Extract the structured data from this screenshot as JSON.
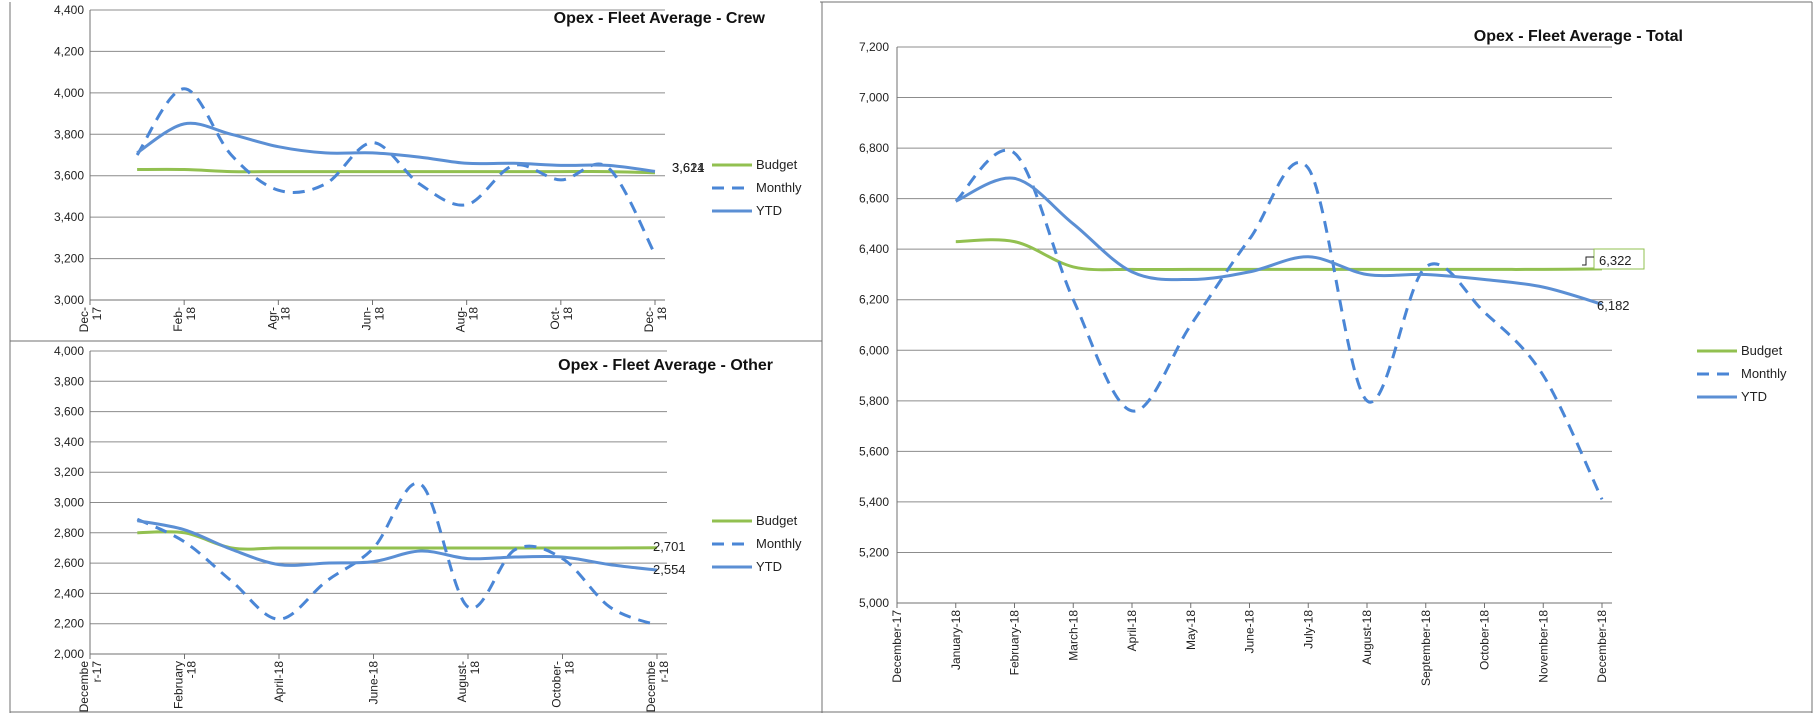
{
  "colors": {
    "budget": "#92c050",
    "monthly": "#4a86d6",
    "ytd": "#5b8fd4",
    "grid": "#8c8c8c",
    "frame": "#707070"
  },
  "chart_data": [
    {
      "id": "crew",
      "type": "line",
      "title": "Opex - Fleet Average - Crew",
      "x": [
        0,
        1,
        2,
        3,
        4,
        5,
        6,
        7,
        8,
        9,
        10,
        11,
        12
      ],
      "tick_labels": [
        "Dec-\n17",
        "Feb-\n18",
        "Agr-\n18",
        "Jun-\n18",
        "Aug-\n18",
        "Oct-\n18",
        "Dec-\n18"
      ],
      "tick_positions": [
        0,
        2,
        4,
        6,
        8,
        10,
        12
      ],
      "ylim": [
        3000,
        4400
      ],
      "yticks": [
        3000,
        3200,
        3400,
        3600,
        3800,
        4000,
        4200,
        4400
      ],
      "ytick_labels": [
        "3,000",
        "3,200",
        "3,400",
        "3,600",
        "3,800",
        "4,000",
        "4,200",
        "4,400"
      ],
      "series": [
        {
          "name": "Budget",
          "style": "solid-green",
          "x": [
            1,
            2,
            3,
            4,
            5,
            6,
            7,
            8,
            9,
            10,
            11,
            12
          ],
          "values": [
            3630,
            3630,
            3620,
            3620,
            3620,
            3620,
            3620,
            3620,
            3620,
            3620,
            3620,
            3614
          ]
        },
        {
          "name": "Monthly",
          "style": "dashed-blue",
          "x": [
            1,
            2,
            3,
            4,
            5,
            6,
            7,
            8,
            9,
            10,
            11,
            12
          ],
          "values": [
            3700,
            4020,
            3700,
            3530,
            3560,
            3760,
            3560,
            3460,
            3650,
            3580,
            3640,
            3220
          ]
        },
        {
          "name": "YTD",
          "style": "solid-blue",
          "x": [
            1,
            2,
            3,
            4,
            5,
            6,
            7,
            8,
            9,
            10,
            11,
            12
          ],
          "values": [
            3710,
            3850,
            3800,
            3740,
            3710,
            3710,
            3690,
            3660,
            3660,
            3650,
            3650,
            3621
          ]
        }
      ],
      "end_labels": [
        "3,614",
        "3,621"
      ],
      "legend": [
        "Budget",
        "Monthly",
        "YTD"
      ]
    },
    {
      "id": "other",
      "type": "line",
      "title": "Opex - Fleet Average - Other",
      "x": [
        0,
        1,
        2,
        3,
        4,
        5,
        6,
        7,
        8,
        9,
        10,
        11,
        12
      ],
      "tick_labels": [
        "Decembe\nr-17",
        "February\n-18",
        "April-18",
        "June-18",
        "August-\n18",
        "October-\n18",
        "Decembe\nr-18"
      ],
      "tick_positions": [
        0,
        2,
        4,
        6,
        8,
        10,
        12
      ],
      "ylim": [
        2000,
        4000
      ],
      "yticks": [
        2000,
        2200,
        2400,
        2600,
        2800,
        3000,
        3200,
        3400,
        3600,
        3800,
        4000
      ],
      "ytick_labels": [
        "2,000",
        "2,200",
        "2,400",
        "2,600",
        "2,800",
        "3,000",
        "3,200",
        "3,400",
        "3,600",
        "3,800",
        "4,000"
      ],
      "series": [
        {
          "name": "Budget",
          "style": "solid-green",
          "x": [
            1,
            2,
            3,
            4,
            5,
            6,
            7,
            8,
            9,
            10,
            11,
            12
          ],
          "values": [
            2800,
            2800,
            2700,
            2700,
            2700,
            2700,
            2700,
            2700,
            2700,
            2700,
            2700,
            2701
          ]
        },
        {
          "name": "Monthly",
          "style": "dashed-blue",
          "x": [
            1,
            2,
            3,
            4,
            5,
            6,
            7,
            8,
            9,
            10,
            11,
            12
          ],
          "values": [
            2890,
            2740,
            2480,
            2230,
            2480,
            2700,
            3120,
            2310,
            2690,
            2630,
            2310,
            2190
          ]
        },
        {
          "name": "YTD",
          "style": "solid-blue",
          "x": [
            1,
            2,
            3,
            4,
            5,
            6,
            7,
            8,
            9,
            10,
            11,
            12
          ],
          "values": [
            2880,
            2820,
            2690,
            2590,
            2600,
            2610,
            2680,
            2630,
            2640,
            2640,
            2590,
            2554
          ]
        }
      ],
      "end_labels": [
        "2,701",
        "2,554"
      ],
      "legend": [
        "Budget",
        "Monthly",
        "YTD"
      ]
    },
    {
      "id": "total",
      "type": "line",
      "title": "Opex - Fleet Average - Total",
      "x": [
        0,
        1,
        2,
        3,
        4,
        5,
        6,
        7,
        8,
        9,
        10,
        11,
        12
      ],
      "tick_labels": [
        "December-17",
        "January-18",
        "February-18",
        "March-18",
        "April-18",
        "May-18",
        "June-18",
        "July-18",
        "August-18",
        "September-18",
        "October-18",
        "November-18",
        "December-18"
      ],
      "tick_positions": [
        0,
        1,
        2,
        3,
        4,
        5,
        6,
        7,
        8,
        9,
        10,
        11,
        12
      ],
      "ylim": [
        5000,
        7200
      ],
      "yticks": [
        5000,
        5200,
        5400,
        5600,
        5800,
        6000,
        6200,
        6400,
        6600,
        6800,
        7000,
        7200
      ],
      "ytick_labels": [
        "5,000",
        "5,200",
        "5,400",
        "5,600",
        "5,800",
        "6,000",
        "6,200",
        "6,400",
        "6,600",
        "6,800",
        "7,000",
        "7,200"
      ],
      "series": [
        {
          "name": "Budget",
          "style": "solid-green",
          "x": [
            1,
            2,
            3,
            4,
            5,
            6,
            7,
            8,
            9,
            10,
            11,
            12
          ],
          "values": [
            6430,
            6430,
            6330,
            6320,
            6320,
            6320,
            6320,
            6320,
            6320,
            6320,
            6320,
            6322
          ]
        },
        {
          "name": "Monthly",
          "style": "dashed-blue",
          "x": [
            1,
            2,
            3,
            4,
            5,
            6,
            7,
            8,
            9,
            10,
            11,
            12
          ],
          "values": [
            6590,
            6780,
            6200,
            5760,
            6100,
            6440,
            6720,
            5800,
            6330,
            6150,
            5900,
            5410
          ]
        },
        {
          "name": "YTD",
          "style": "solid-blue",
          "x": [
            1,
            2,
            3,
            4,
            5,
            6,
            7,
            8,
            9,
            10,
            11,
            12
          ],
          "values": [
            6590,
            6680,
            6500,
            6310,
            6280,
            6310,
            6370,
            6300,
            6300,
            6280,
            6250,
            6182
          ]
        }
      ],
      "end_labels": [
        "6,322",
        "6,182"
      ],
      "legend": [
        "Budget",
        "Monthly",
        "YTD"
      ]
    }
  ]
}
